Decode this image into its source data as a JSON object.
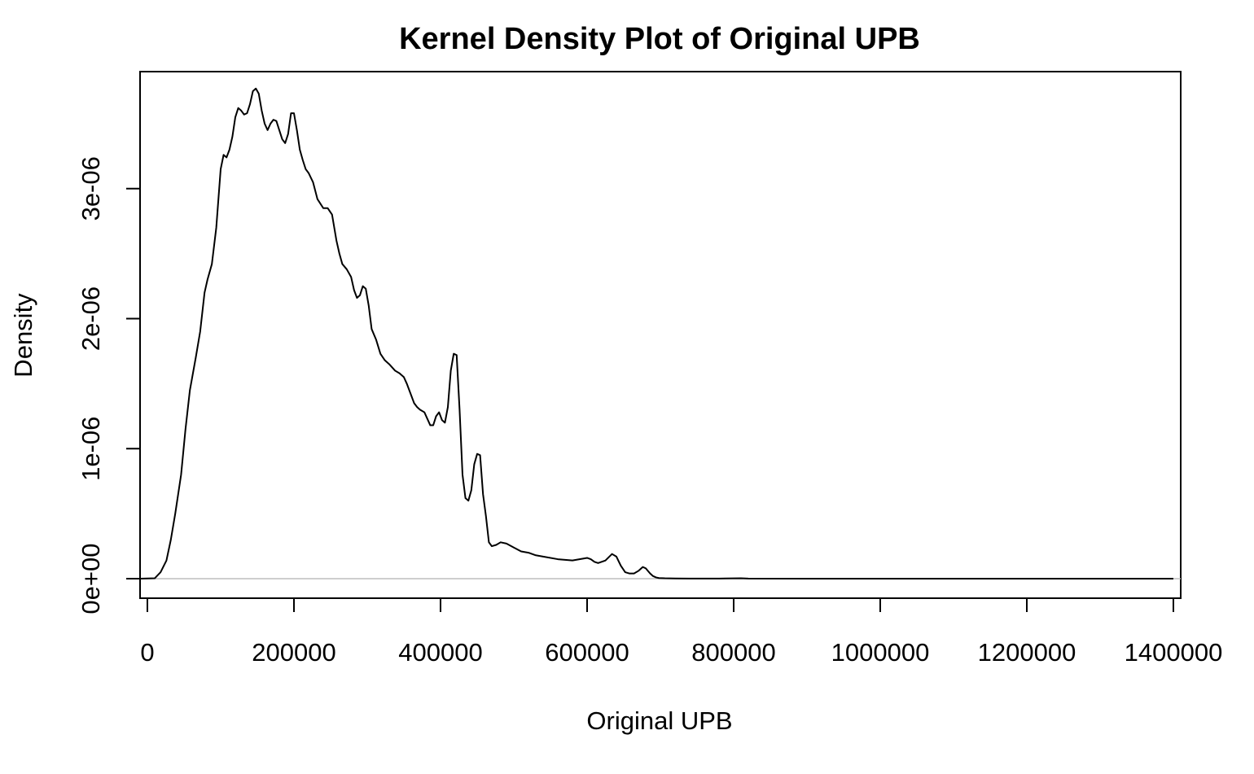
{
  "chart_data": {
    "type": "line",
    "title": "Kernel Density Plot of Original UPB",
    "xlabel": "Original UPB",
    "ylabel": "Density",
    "xlim": [
      -10000,
      1410000
    ],
    "ylim": [
      -1.5e-07,
      3.9e-06
    ],
    "x_ticks": [
      {
        "value": 0,
        "label": "0"
      },
      {
        "value": 200000,
        "label": "200000"
      },
      {
        "value": 400000,
        "label": "400000"
      },
      {
        "value": 600000,
        "label": "600000"
      },
      {
        "value": 800000,
        "label": "800000"
      },
      {
        "value": 1000000,
        "label": "1000000"
      },
      {
        "value": 1200000,
        "label": "1200000"
      },
      {
        "value": 1400000,
        "label": "1400000"
      }
    ],
    "y_ticks": [
      {
        "value": 0,
        "label": "0e+00"
      },
      {
        "value": 1e-06,
        "label": "1e-06"
      },
      {
        "value": 2e-06,
        "label": "2e-06"
      },
      {
        "value": 3e-06,
        "label": "3e-06"
      }
    ],
    "grid": false,
    "zero_line": true,
    "colors": {
      "line": "#000000",
      "zero_line": "#bebebe"
    },
    "series": [
      {
        "x": [
          -10000,
          10000,
          18000,
          26000,
          32000,
          38000,
          46000,
          52000,
          58000,
          66000,
          72000,
          78000,
          82000,
          88000,
          94000,
          100000,
          104000,
          108000,
          112000,
          116000,
          120000,
          124000,
          128000,
          132000,
          136000,
          140000,
          144000,
          148000,
          152000,
          156000,
          160000,
          164000,
          168000,
          172000,
          176000,
          180000,
          184000,
          188000,
          192000,
          196000,
          200000,
          204000,
          208000,
          212000,
          216000,
          220000,
          226000,
          232000,
          240000,
          246000,
          252000,
          258000,
          262000,
          266000,
          272000,
          278000,
          282000,
          286000,
          290000,
          294000,
          298000,
          302000,
          306000,
          312000,
          318000,
          324000,
          330000,
          338000,
          344000,
          350000,
          354000,
          358000,
          364000,
          368000,
          372000,
          378000,
          382000,
          386000,
          390000,
          394000,
          398000,
          402000,
          406000,
          410000,
          414000,
          418000,
          422000,
          426000,
          430000,
          434000,
          438000,
          442000,
          446000,
          450000,
          454000,
          458000,
          462000,
          466000,
          470000,
          476000,
          482000,
          490000,
          500000,
          510000,
          520000,
          530000,
          540000,
          560000,
          580000,
          600000,
          605000,
          610000,
          615000,
          625000,
          634000,
          640000,
          646000,
          652000,
          658000,
          664000,
          670000,
          676000,
          680000,
          686000,
          690000,
          694000,
          698000,
          706000,
          720000,
          740000,
          780000,
          810000,
          820000,
          900000,
          1000000,
          1100000,
          1200000,
          1300000,
          1400000
        ],
        "values": [
          0,
          3e-09,
          5e-08,
          1.4e-07,
          3e-07,
          5e-07,
          8e-07,
          1.15e-06,
          1.45e-06,
          1.7e-06,
          1.9e-06,
          2.2e-06,
          2.3e-06,
          2.42e-06,
          2.7e-06,
          3.15e-06,
          3.26e-06,
          3.24e-06,
          3.3e-06,
          3.4e-06,
          3.55e-06,
          3.62e-06,
          3.6e-06,
          3.57e-06,
          3.58e-06,
          3.65e-06,
          3.75e-06,
          3.77e-06,
          3.73e-06,
          3.6e-06,
          3.5e-06,
          3.45e-06,
          3.5e-06,
          3.53e-06,
          3.52e-06,
          3.45e-06,
          3.38e-06,
          3.35e-06,
          3.42e-06,
          3.58e-06,
          3.58e-06,
          3.45e-06,
          3.3e-06,
          3.22e-06,
          3.15e-06,
          3.12e-06,
          3.05e-06,
          2.92e-06,
          2.85e-06,
          2.85e-06,
          2.8e-06,
          2.6e-06,
          2.5e-06,
          2.42e-06,
          2.38e-06,
          2.32e-06,
          2.22e-06,
          2.16e-06,
          2.18e-06,
          2.25e-06,
          2.23e-06,
          2.1e-06,
          1.92e-06,
          1.84e-06,
          1.73e-06,
          1.68e-06,
          1.65e-06,
          1.6e-06,
          1.58e-06,
          1.55e-06,
          1.5e-06,
          1.44e-06,
          1.35e-06,
          1.32e-06,
          1.3e-06,
          1.28e-06,
          1.23e-06,
          1.18e-06,
          1.18e-06,
          1.25e-06,
          1.28e-06,
          1.22e-06,
          1.2e-06,
          1.32e-06,
          1.6e-06,
          1.73e-06,
          1.72e-06,
          1.3e-06,
          8e-07,
          6.2e-07,
          6e-07,
          6.8e-07,
          8.8e-07,
          9.6e-07,
          9.5e-07,
          6.5e-07,
          4.8e-07,
          2.8e-07,
          2.5e-07,
          2.6e-07,
          2.8e-07,
          2.7e-07,
          2.4e-07,
          2.1e-07,
          2e-07,
          1.8e-07,
          1.7e-07,
          1.5e-07,
          1.4e-07,
          1.6e-07,
          1.5e-07,
          1.3e-07,
          1.2e-07,
          1.4e-07,
          1.9e-07,
          1.7e-07,
          1e-07,
          5e-08,
          4e-08,
          4e-08,
          6e-08,
          9e-08,
          8e-08,
          4e-08,
          2e-08,
          1e-08,
          5e-09,
          3e-09,
          2e-09,
          1e-09,
          1e-09,
          3e-09,
          1e-09,
          0,
          0,
          0,
          0,
          0,
          0
        ]
      }
    ]
  }
}
